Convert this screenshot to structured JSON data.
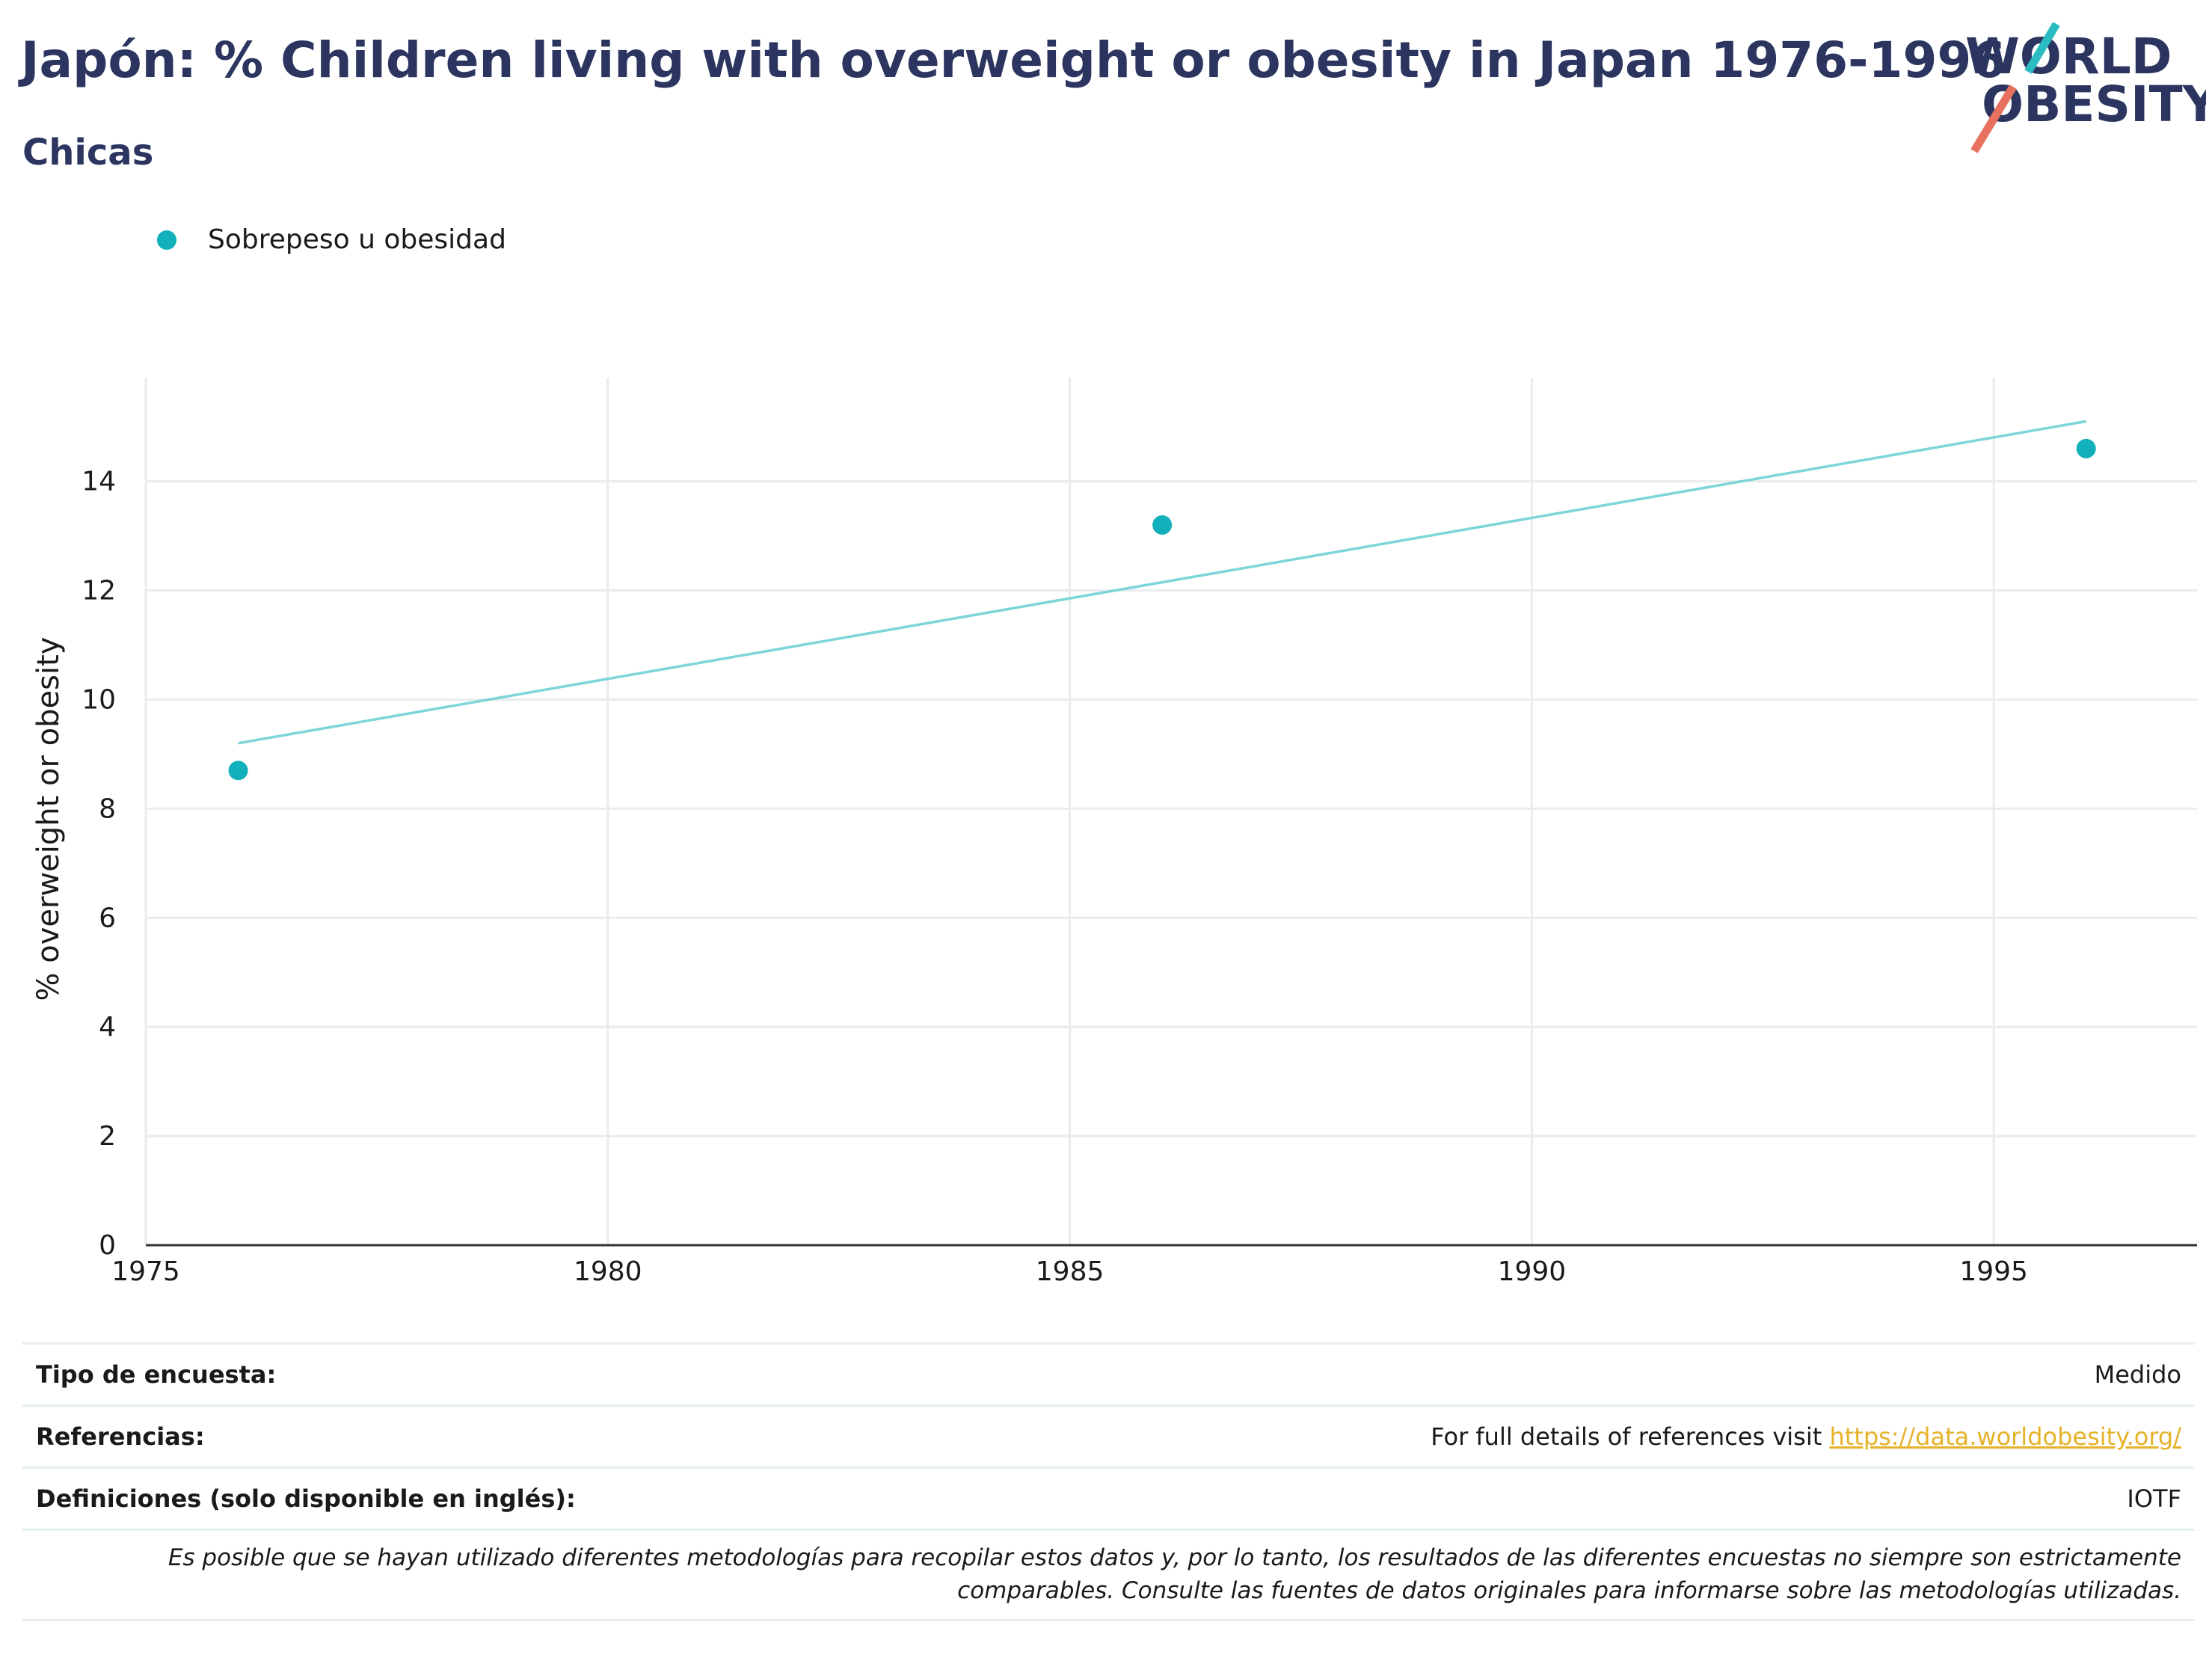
{
  "header": {
    "title": "Japón: % Children living with overweight or obesity in Japan 1976-1996",
    "subtitle": "Chicas"
  },
  "logo": {
    "line1": "WORLD",
    "line2": "OBESITY",
    "accent_teal": "#2bbcc3",
    "accent_coral": "#e8705e"
  },
  "legend": {
    "label": "Sobrepeso u obesidad"
  },
  "colors": {
    "series": "#12b0bb",
    "trend": "#7dd5da",
    "grid": "#e9ebee",
    "text_dark": "#2b3560"
  },
  "chart_data": {
    "type": "scatter",
    "series": [
      {
        "name": "Sobrepeso u obesidad",
        "x": [
          1976,
          1986,
          1996
        ],
        "values": [
          8.7,
          13.2,
          14.6
        ]
      }
    ],
    "trendline": {
      "x": [
        1976,
        1996
      ],
      "values": [
        9.2,
        15.1
      ]
    },
    "xlim": [
      1975,
      1997.2
    ],
    "ylim": [
      0,
      15.9
    ],
    "x_ticks": [
      1975,
      1980,
      1985,
      1990,
      1995
    ],
    "y_ticks": [
      0,
      2,
      4,
      6,
      8,
      10,
      12,
      14
    ],
    "xlabel": "",
    "ylabel": "% overweight or obesity",
    "grid": true
  },
  "info": {
    "rows": [
      {
        "label": "Tipo de encuesta:",
        "value": "Medido"
      },
      {
        "label": "Referencias:",
        "value_prefix": "For full details of references visit ",
        "link": "https://data.worldobesity.org/"
      },
      {
        "label": "Definiciones (solo disponible en inglés):",
        "value": "IOTF"
      }
    ],
    "note_line1": "Es posible que se hayan utilizado diferentes metodologías para recopilar estos datos y, por lo tanto, los resultados de las diferentes encuestas no siempre son estrictamente",
    "note_line2": "comparables. Consulte las fuentes de datos originales para informarse sobre las metodologías utilizadas."
  }
}
